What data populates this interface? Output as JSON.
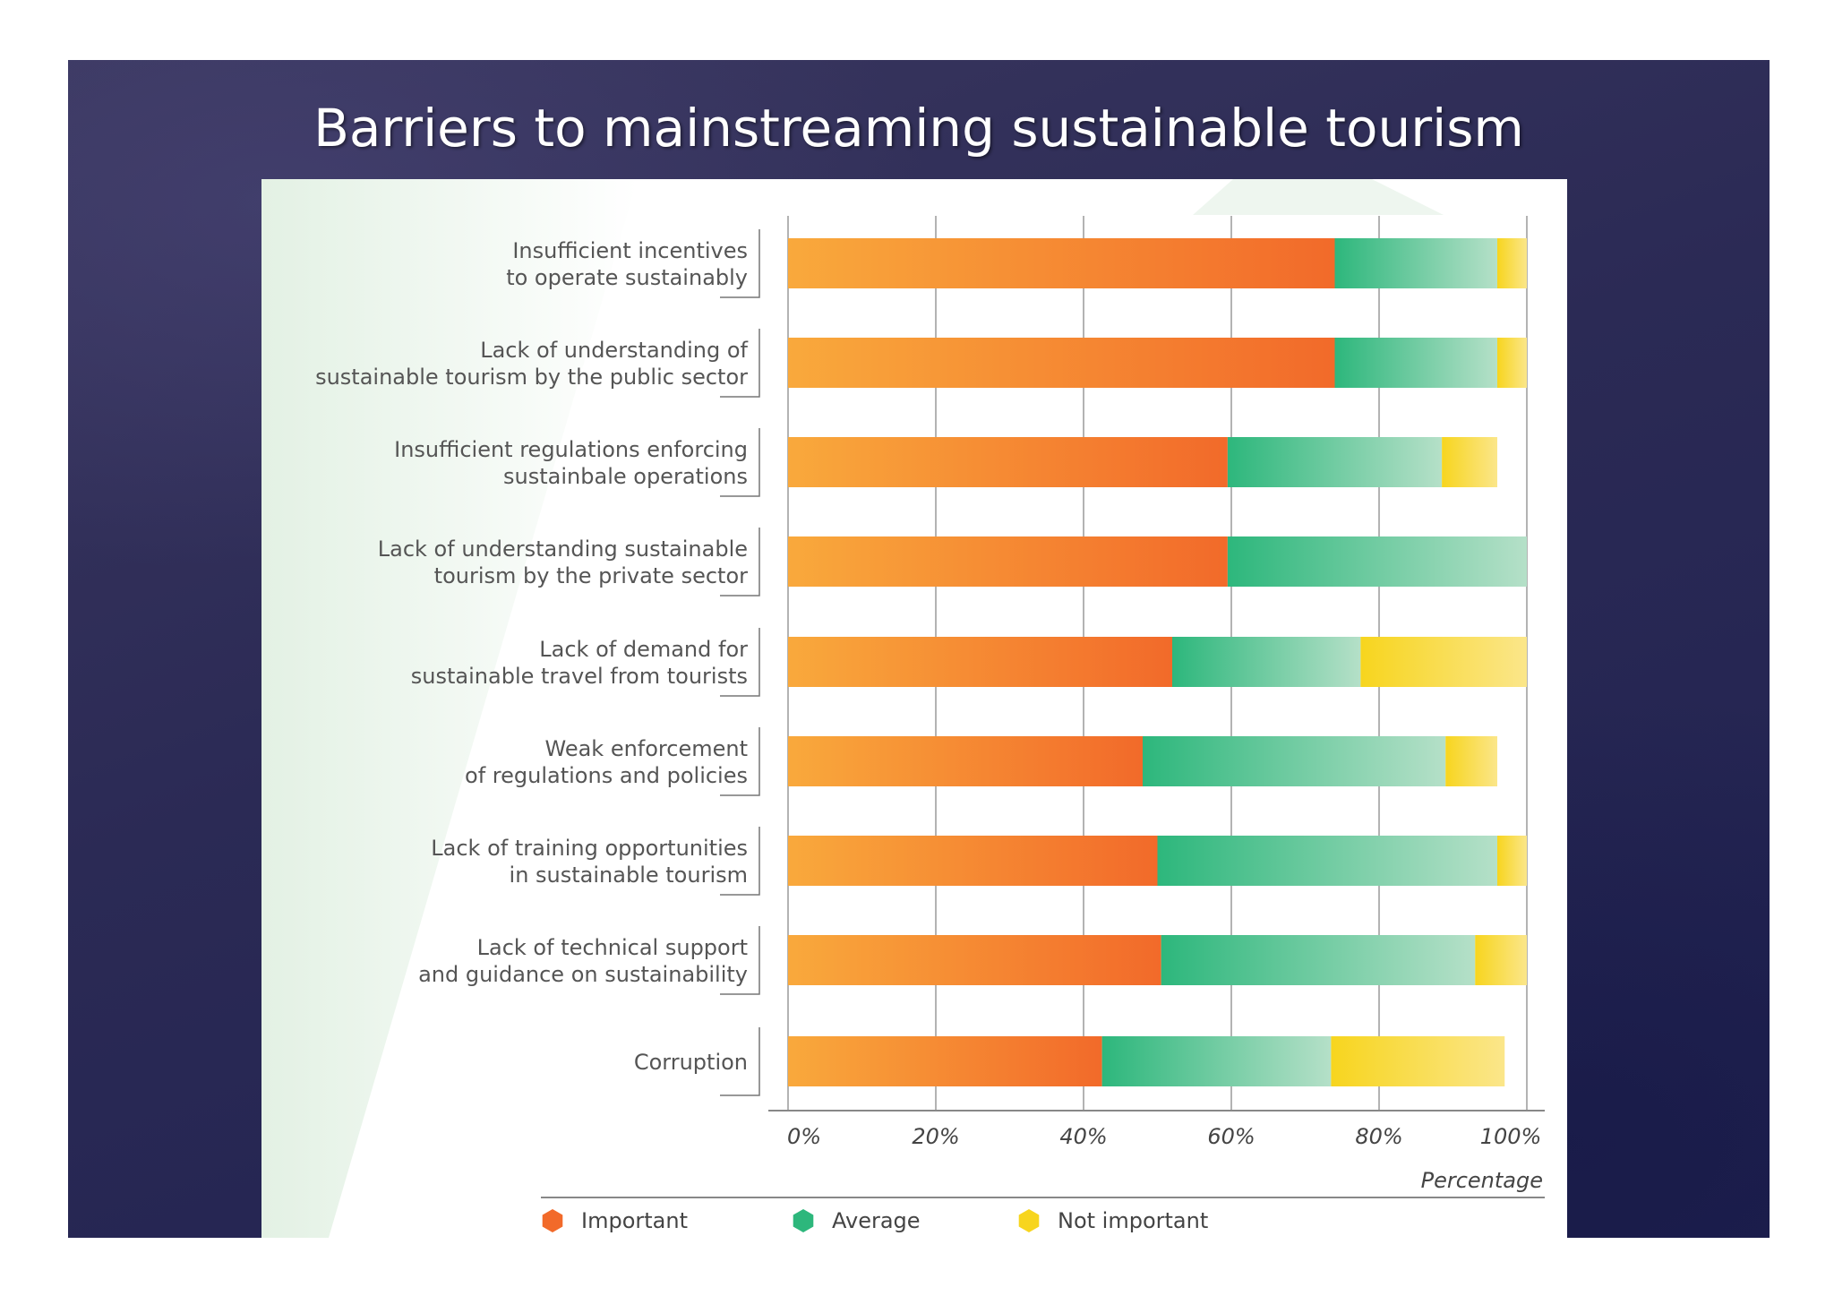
{
  "slide": {
    "title": "Barriers to mainstreaming sustainable tourism"
  },
  "colors": {
    "important": "#f26a2a",
    "important_light": "#f9a93c",
    "average": "#2db77c",
    "average_light": "#b5e0c8",
    "not_important": "#f7d51e",
    "not_important_light": "#fbe68a",
    "slide_background": "#2b2a55"
  },
  "chart_data": {
    "type": "bar",
    "orientation": "horizontal",
    "stacked": true,
    "categories": [
      [
        "Insufficient incentives",
        "to operate sustainably"
      ],
      [
        "Lack of understanding of",
        "sustainable tourism by the public sector"
      ],
      [
        "Insufficient regulations enforcing",
        "sustainbale operations"
      ],
      [
        "Lack of understanding sustainable",
        "tourism by the private sector"
      ],
      [
        "Lack of demand for",
        "sustainable travel from tourists"
      ],
      [
        "Weak enforcement",
        "of regulations and policies"
      ],
      [
        "Lack of training opportunities",
        "in sustainable tourism"
      ],
      [
        "Lack of technical support",
        "and guidance on sustainability"
      ],
      [
        "Corruption"
      ]
    ],
    "series": [
      {
        "name": "Important",
        "values": [
          74,
          74,
          59.5,
          59.5,
          52,
          48,
          50,
          50.5,
          42.5
        ]
      },
      {
        "name": "Average",
        "values": [
          22,
          22,
          29,
          40.5,
          25.5,
          41,
          46,
          42.5,
          31
        ]
      },
      {
        "name": "Not important",
        "values": [
          4,
          4,
          7.5,
          0,
          22.5,
          7,
          4,
          7,
          23.5
        ]
      }
    ],
    "x_ticks": [
      "0%",
      "20%",
      "40%",
      "60%",
      "80%",
      "100%"
    ],
    "xlim": [
      0,
      100
    ],
    "xlabel": "Percentage",
    "legend_position": "bottom",
    "grid": "vertical"
  }
}
